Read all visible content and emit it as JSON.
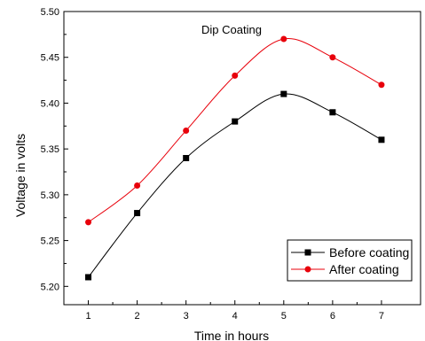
{
  "chart_data": {
    "type": "line",
    "title": "Dip Coating",
    "xlabel": "Time in hours",
    "ylabel": "Voltage in volts",
    "x": [
      1,
      2,
      3,
      4,
      5,
      6,
      7
    ],
    "xlim": [
      0.5,
      7.8
    ],
    "ylim": [
      5.18,
      5.5
    ],
    "xticks": [
      "1",
      "2",
      "3",
      "4",
      "5",
      "6",
      "7"
    ],
    "yticks": [
      "5.20",
      "5.25",
      "5.30",
      "5.35",
      "5.40",
      "5.45",
      "5.50"
    ],
    "grid": false,
    "legend_position": "bottom-right",
    "series": [
      {
        "name": "Before coating",
        "values": [
          5.21,
          5.28,
          5.34,
          5.38,
          5.41,
          5.39,
          5.36
        ],
        "color": "#000000",
        "marker": "square"
      },
      {
        "name": "After coating",
        "values": [
          5.27,
          5.31,
          5.37,
          5.43,
          5.47,
          5.45,
          5.42
        ],
        "color": "#e8000b",
        "marker": "circle"
      }
    ]
  }
}
